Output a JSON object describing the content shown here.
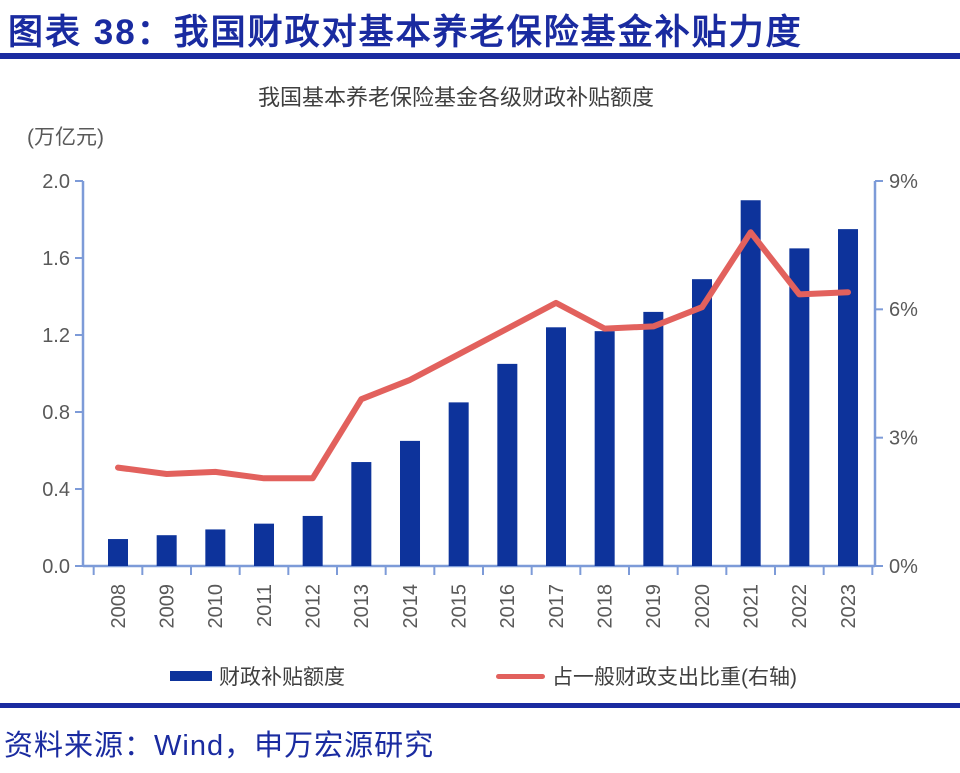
{
  "header": {
    "title": "图表 38：我国财政对基本养老保险基金补贴力度"
  },
  "chart": {
    "title": "我国基本养老保险基金各级财政补贴额度",
    "unit_label": "(万亿元)",
    "legend": {
      "bar_label": "财政补贴额度",
      "line_label": "占一般财政支出比重(右轴)"
    }
  },
  "chart_data": {
    "type": "bar",
    "title": "我国基本养老保险基金各级财政补贴额度",
    "categories": [
      "2008",
      "2009",
      "2010",
      "2011",
      "2012",
      "2013",
      "2014",
      "2015",
      "2016",
      "2017",
      "2018",
      "2019",
      "2020",
      "2021",
      "2022",
      "2023"
    ],
    "series": [
      {
        "name": "财政补贴额度",
        "type": "bar",
        "axis": "left",
        "values": [
          0.14,
          0.16,
          0.19,
          0.22,
          0.26,
          0.54,
          0.65,
          0.85,
          1.05,
          1.24,
          1.22,
          1.32,
          1.49,
          1.9,
          1.65,
          1.75
        ]
      },
      {
        "name": "占一般财政支出比重(右轴)",
        "type": "line",
        "axis": "right",
        "values": [
          2.3,
          2.15,
          2.2,
          2.05,
          2.05,
          3.9,
          4.35,
          4.95,
          5.55,
          6.15,
          5.55,
          5.6,
          6.05,
          7.8,
          6.35,
          6.4
        ]
      }
    ],
    "left_axis": {
      "label": "(万亿元)",
      "min": 0,
      "max": 2.0,
      "ticks": [
        0.0,
        0.4,
        0.8,
        1.2,
        1.6,
        2.0
      ]
    },
    "right_axis": {
      "min": 0,
      "max": 9,
      "ticks": [
        0,
        3,
        6,
        9
      ],
      "suffix": "%"
    },
    "grid": false,
    "legend_position": "bottom",
    "colors": {
      "bar": "#0D339B",
      "line": "#E2615D",
      "axis": "#7D9BD8",
      "accent": "#1A2BA0",
      "tick_text": "#595959"
    }
  },
  "footer": {
    "source": "资料来源：Wind，申万宏源研究"
  }
}
